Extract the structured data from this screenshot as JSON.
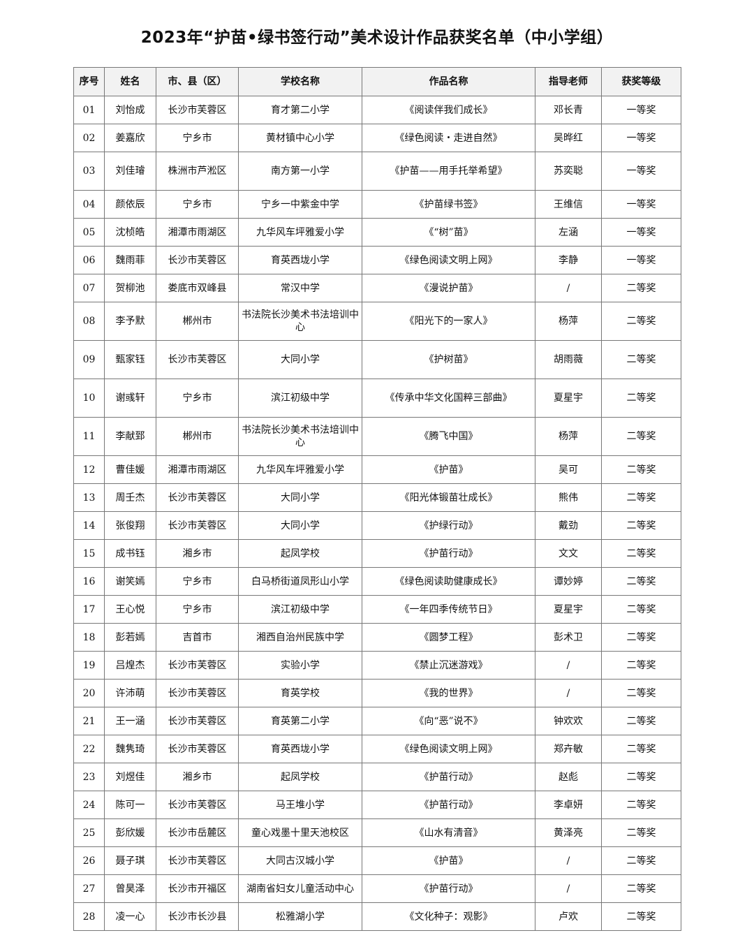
{
  "title": "2023年“护苗•绿书签行动”美术设计作品获奖名单（中小学组）",
  "columns": [
    "序号",
    "姓名",
    "市、县（区）",
    "学校名称",
    "作品名称",
    "指导老师",
    "获奖等级"
  ],
  "rows": [
    [
      "01",
      "刘怡成",
      "长沙市芙蓉区",
      "育才第二小学",
      "《阅读伴我们成长》",
      "邓长青",
      "一等奖"
    ],
    [
      "02",
      "姜嘉欣",
      "宁乡市",
      "黄材镇中心小学",
      "《绿色阅读・走进自然》",
      "吴晔红",
      "一等奖"
    ],
    [
      "03",
      "刘佳璿",
      "株洲市芦淞区",
      "南方第一小学",
      "《护苗——用手托举希望》",
      "苏奕聪",
      "一等奖"
    ],
    [
      "04",
      "颜依辰",
      "宁乡市",
      "宁乡一中紫金中学",
      "《护苗绿书签》",
      "王维信",
      "一等奖"
    ],
    [
      "05",
      "沈桢皓",
      "湘潭市雨湖区",
      "九华风车坪雅爱小学",
      "《“树”苗》",
      "左涵",
      "一等奖"
    ],
    [
      "06",
      "魏雨菲",
      "长沙市芙蓉区",
      "育英西垅小学",
      "《绿色阅读文明上网》",
      "李静",
      "一等奖"
    ],
    [
      "07",
      "贺柳池",
      "娄底市双峰县",
      "常汉中学",
      "《漫说护苗》",
      "/",
      "二等奖"
    ],
    [
      "08",
      "李予默",
      "郴州市",
      "书法院长沙美术书法培训中心",
      "《阳光下的一家人》",
      "杨萍",
      "二等奖"
    ],
    [
      "09",
      "甄家钰",
      "长沙市芙蓉区",
      "大同小学",
      "《护树苗》",
      "胡雨薇",
      "二等奖"
    ],
    [
      "10",
      "谢彧轩",
      "宁乡市",
      "滨江初级中学",
      "《传承中华文化国粹三部曲》",
      "夏星宇",
      "二等奖"
    ],
    [
      "11",
      "李献郅",
      "郴州市",
      "书法院长沙美术书法培训中心",
      "《腾飞中国》",
      "杨萍",
      "二等奖"
    ],
    [
      "12",
      "曹佳媛",
      "湘潭市雨湖区",
      "九华风车坪雅爱小学",
      "《护苗》",
      "吴可",
      "二等奖"
    ],
    [
      "13",
      "周壬杰",
      "长沙市芙蓉区",
      "大同小学",
      "《阳光体锻苗壮成长》",
      "熊伟",
      "二等奖"
    ],
    [
      "14",
      "张俊翔",
      "长沙市芙蓉区",
      "大同小学",
      "《护绿行动》",
      "戴劲",
      "二等奖"
    ],
    [
      "15",
      "成书钰",
      "湘乡市",
      "起凤学校",
      "《护苗行动》",
      "文文",
      "二等奖"
    ],
    [
      "16",
      "谢笑嫣",
      "宁乡市",
      "白马桥街道凤形山小学",
      "《绿色阅读助健康成长》",
      "谭妙婷",
      "二等奖"
    ],
    [
      "17",
      "王心悦",
      "宁乡市",
      "滨江初级中学",
      "《一年四季传统节日》",
      "夏星宇",
      "二等奖"
    ],
    [
      "18",
      "彭若嫣",
      "吉首市",
      "湘西自治州民族中学",
      "《圆梦工程》",
      "彭术卫",
      "二等奖"
    ],
    [
      "19",
      "吕煌杰",
      "长沙市芙蓉区",
      "实验小学",
      "《禁止沉迷游戏》",
      "/",
      "二等奖"
    ],
    [
      "20",
      "许沛萌",
      "长沙市芙蓉区",
      "育英学校",
      "《我的世界》",
      "/",
      "二等奖"
    ],
    [
      "21",
      "王一涵",
      "长沙市芙蓉区",
      "育英第二小学",
      "《向“恶”说不》",
      "钟欢欢",
      "二等奖"
    ],
    [
      "22",
      "魏隽琦",
      "长沙市芙蓉区",
      "育英西垅小学",
      "《绿色阅读文明上网》",
      "郑卉敏",
      "二等奖"
    ],
    [
      "23",
      "刘煜佳",
      "湘乡市",
      "起凤学校",
      "《护苗行动》",
      "赵彪",
      "二等奖"
    ],
    [
      "24",
      "陈可一",
      "长沙市芙蓉区",
      "马王堆小学",
      "《护苗行动》",
      "李卓妍",
      "二等奖"
    ],
    [
      "25",
      "彭欣媛",
      "长沙市岳麓区",
      "童心戏墨十里天池校区",
      "《山水有清音》",
      "黄泽亮",
      "二等奖"
    ],
    [
      "26",
      "聂子琪",
      "长沙市芙蓉区",
      "大同古汉城小学",
      "《护苗》",
      "/",
      "二等奖"
    ],
    [
      "27",
      "曾昊泽",
      "长沙市开福区",
      "湖南省妇女儿童活动中心",
      "《护苗行动》",
      "/",
      "二等奖"
    ],
    [
      "28",
      "凌一心",
      "长沙市长沙县",
      "松雅湖小学",
      "《文化种子：观影》",
      "卢欢",
      "二等奖"
    ]
  ]
}
